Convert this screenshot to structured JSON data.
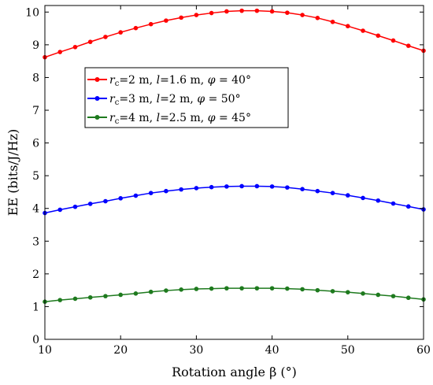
{
  "chart_data": {
    "type": "line",
    "xlabel": "Rotation angle β (°)",
    "ylabel": "EE (bits/J/Hz)",
    "xlim": [
      10,
      60
    ],
    "ylim": [
      0,
      10.2
    ],
    "x_ticks": [
      "10",
      "20",
      "30",
      "40",
      "50",
      "60"
    ],
    "y_ticks": [
      "0",
      "1",
      "2",
      "3",
      "4",
      "5",
      "6",
      "7",
      "8",
      "9",
      "10"
    ],
    "grid": false,
    "legend_position": "upper-left",
    "x": [
      10,
      12,
      14,
      16,
      18,
      20,
      22,
      24,
      26,
      28,
      30,
      32,
      34,
      36,
      38,
      40,
      42,
      44,
      46,
      48,
      50,
      52,
      54,
      56,
      58,
      60
    ],
    "series": [
      {
        "name": "rc=2 m, l=1.6 m, φ = 40°",
        "color": "#ff0000",
        "values": [
          8.62,
          8.78,
          8.93,
          9.09,
          9.24,
          9.38,
          9.51,
          9.63,
          9.74,
          9.83,
          9.91,
          9.97,
          10.02,
          10.04,
          10.04,
          10.02,
          9.98,
          9.91,
          9.82,
          9.7,
          9.57,
          9.43,
          9.28,
          9.13,
          8.97,
          8.82
        ]
      },
      {
        "name": "rc=3 m, l=2 m, φ = 50°",
        "color": "#0000ff",
        "values": [
          3.86,
          3.96,
          4.05,
          4.14,
          4.22,
          4.31,
          4.39,
          4.47,
          4.53,
          4.58,
          4.62,
          4.65,
          4.67,
          4.68,
          4.68,
          4.67,
          4.64,
          4.59,
          4.53,
          4.47,
          4.4,
          4.32,
          4.24,
          4.15,
          4.06,
          3.97
        ]
      },
      {
        "name": "rc=4 m, l=2.5 m, φ = 45°",
        "color": "#1e7a1e",
        "values": [
          1.15,
          1.2,
          1.24,
          1.28,
          1.32,
          1.36,
          1.4,
          1.45,
          1.49,
          1.52,
          1.54,
          1.55,
          1.56,
          1.56,
          1.56,
          1.56,
          1.55,
          1.53,
          1.5,
          1.47,
          1.44,
          1.4,
          1.36,
          1.32,
          1.27,
          1.22
        ]
      }
    ]
  },
  "legend": [
    {
      "r": "r",
      "sub": "c",
      "rest1": "=2 m, ",
      "l": "l",
      "rest2": "=1.6 m, ",
      "phi": "φ",
      "rest3": " = 40°"
    },
    {
      "r": "r",
      "sub": "c",
      "rest1": "=3 m, ",
      "l": "l",
      "rest2": "=2 m, ",
      "phi": "φ",
      "rest3": " = 50°"
    },
    {
      "r": "r",
      "sub": "c",
      "rest1": "=4 m, ",
      "l": "l",
      "rest2": "=2.5 m, ",
      "phi": "φ",
      "rest3": " = 45°"
    }
  ]
}
